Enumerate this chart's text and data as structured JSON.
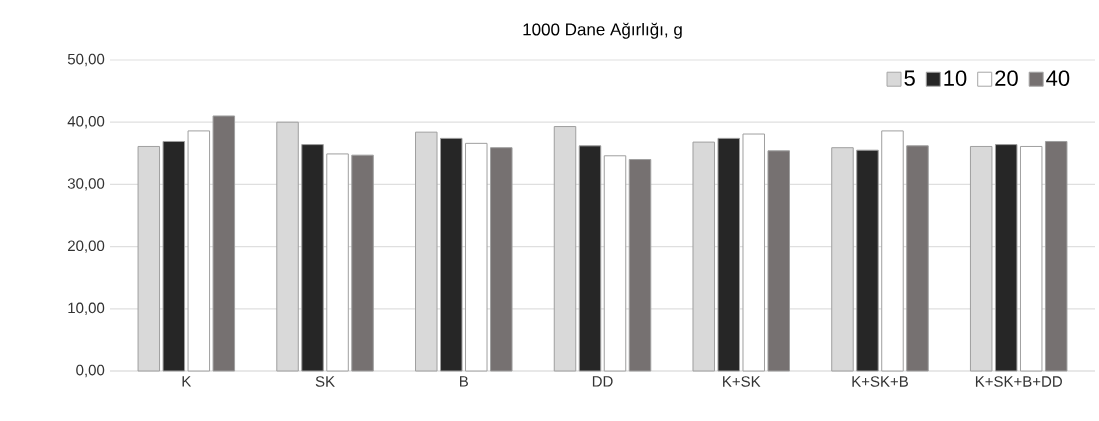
{
  "chart_data": {
    "type": "bar",
    "title": "1000 Dane Ağırlığı, g",
    "categories": [
      "K",
      "SK",
      "B",
      "DD",
      "K+SK",
      "K+SK+B",
      "K+SK+B+DD"
    ],
    "series": [
      {
        "name": "5",
        "color": "#d9d9d9",
        "values": [
          36.1,
          40.0,
          38.4,
          39.3,
          36.8,
          35.9,
          36.1
        ]
      },
      {
        "name": "10",
        "color": "#262626",
        "values": [
          36.9,
          36.4,
          37.4,
          36.2,
          37.4,
          35.5,
          36.4
        ]
      },
      {
        "name": "20",
        "color": "#ffffff",
        "values": [
          38.6,
          34.9,
          36.6,
          34.6,
          38.1,
          38.6,
          36.1
        ]
      },
      {
        "name": "40",
        "color": "#767171",
        "values": [
          41.0,
          34.7,
          35.9,
          34.0,
          35.4,
          36.2,
          36.9
        ]
      }
    ],
    "ylim": [
      0,
      50
    ],
    "yticks": [
      {
        "value": 0,
        "label": "0,00"
      },
      {
        "value": 10,
        "label": "10,00"
      },
      {
        "value": 20,
        "label": "20,00"
      },
      {
        "value": 30,
        "label": "30,00"
      },
      {
        "value": 40,
        "label": "40,00"
      },
      {
        "value": 50,
        "label": "50,00"
      }
    ],
    "grid": "y",
    "legend": "top right"
  }
}
